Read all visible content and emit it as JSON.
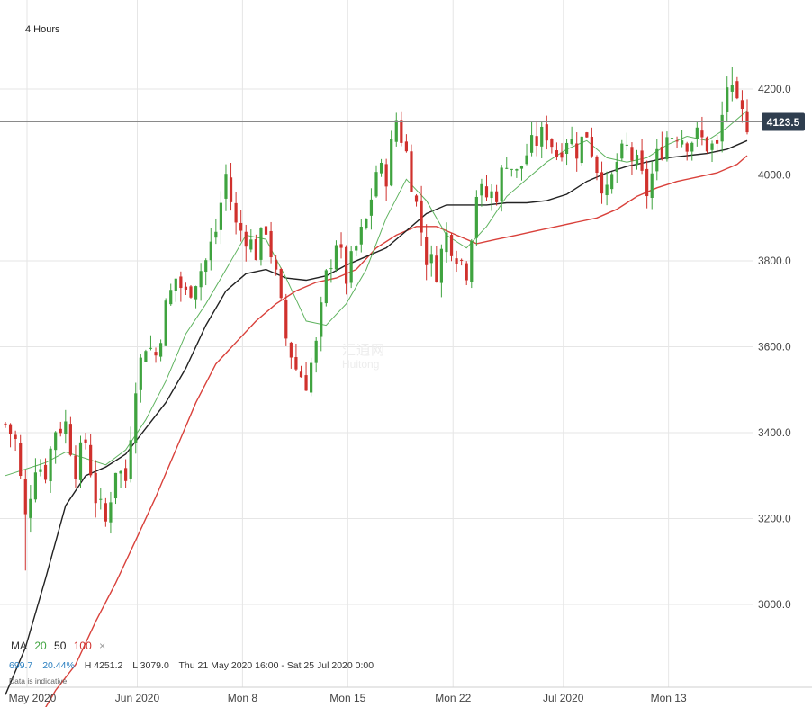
{
  "timeframe": "4 Hours",
  "last_price_label": "4123.5",
  "indicator": {
    "label": "MA",
    "periods": [
      "20",
      "50",
      "100"
    ],
    "remove": "×",
    "colors": {
      "ma20": "#5fb35f",
      "ma50": "#222222",
      "ma100": "#d9413b"
    }
  },
  "stats": {
    "change": "699.7",
    "change_pct": "20.44%",
    "high": "H 4251.2",
    "low": "L 3079.0",
    "range": "Thu 21 May 2020 16:00 - Sat 25 Jul 2020 0:00"
  },
  "note": "Data is indicative",
  "watermark": {
    "line1": "汇通网",
    "line2": "Huitong"
  },
  "colors": {
    "up": "#3fa33f",
    "down": "#d0312d",
    "price_tag": "#2f3e4f"
  },
  "chart_data": {
    "type": "candlestick",
    "title": "",
    "y_ticks": [
      "4200.0",
      "4000.0",
      "3800.0",
      "3600.0",
      "3400.0",
      "3200.0",
      "3000.0"
    ],
    "x_ticks": [
      "May 2020",
      "Jun 2020",
      "Mon 8",
      "Mon 15",
      "Mon 22",
      "Jul 2020",
      "Mon 13"
    ],
    "ylim": [
      2800,
      4290
    ],
    "last_price": 4123.5,
    "high": 4251.2,
    "low": 3079.0,
    "close_path": [
      [
        0,
        3420
      ],
      [
        2,
        3380
      ],
      [
        4,
        3200
      ],
      [
        6,
        3330
      ],
      [
        8,
        3310
      ],
      [
        10,
        3410
      ],
      [
        12,
        3420
      ],
      [
        14,
        3320
      ],
      [
        16,
        3380
      ],
      [
        18,
        3250
      ],
      [
        20,
        3190
      ],
      [
        22,
        3320
      ],
      [
        24,
        3290
      ],
      [
        26,
        3520
      ],
      [
        28,
        3610
      ],
      [
        30,
        3580
      ],
      [
        32,
        3690
      ],
      [
        34,
        3760
      ],
      [
        36,
        3720
      ],
      [
        38,
        3760
      ],
      [
        40,
        3800
      ],
      [
        42,
        3870
      ],
      [
        44,
        4000
      ],
      [
        46,
        3880
      ],
      [
        48,
        3860
      ],
      [
        50,
        3820
      ],
      [
        52,
        3880
      ],
      [
        54,
        3760
      ],
      [
        56,
        3620
      ],
      [
        58,
        3550
      ],
      [
        60,
        3520
      ],
      [
        62,
        3600
      ],
      [
        64,
        3760
      ],
      [
        66,
        3850
      ],
      [
        68,
        3760
      ],
      [
        70,
        3830
      ],
      [
        72,
        3890
      ],
      [
        74,
        4010
      ],
      [
        76,
        4000
      ],
      [
        78,
        4130
      ],
      [
        80,
        4050
      ],
      [
        82,
        3930
      ],
      [
        84,
        3810
      ],
      [
        86,
        3780
      ],
      [
        88,
        3860
      ],
      [
        90,
        3820
      ],
      [
        92,
        3780
      ],
      [
        94,
        3960
      ],
      [
        96,
        3950
      ],
      [
        98,
        3960
      ],
      [
        100,
        4040
      ],
      [
        102,
        4000
      ],
      [
        104,
        4050
      ],
      [
        106,
        4080
      ],
      [
        108,
        4100
      ],
      [
        110,
        4050
      ],
      [
        112,
        4090
      ],
      [
        114,
        4060
      ],
      [
        116,
        4100
      ],
      [
        118,
        4020
      ],
      [
        120,
        3950
      ],
      [
        122,
        4030
      ],
      [
        124,
        4060
      ],
      [
        126,
        4020
      ],
      [
        128,
        3960
      ],
      [
        130,
        4040
      ],
      [
        132,
        4090
      ],
      [
        134,
        4100
      ],
      [
        136,
        4080
      ],
      [
        138,
        4090
      ],
      [
        140,
        4070
      ],
      [
        142,
        4060
      ],
      [
        144,
        4210
      ],
      [
        146,
        4150
      ],
      [
        148,
        4123.5
      ]
    ],
    "ma20": [
      [
        0,
        3300
      ],
      [
        8,
        3330
      ],
      [
        12,
        3355
      ],
      [
        16,
        3340
      ],
      [
        20,
        3325
      ],
      [
        24,
        3360
      ],
      [
        28,
        3430
      ],
      [
        32,
        3520
      ],
      [
        36,
        3630
      ],
      [
        40,
        3700
      ],
      [
        44,
        3780
      ],
      [
        48,
        3860
      ],
      [
        52,
        3850
      ],
      [
        56,
        3760
      ],
      [
        60,
        3660
      ],
      [
        64,
        3650
      ],
      [
        68,
        3700
      ],
      [
        72,
        3780
      ],
      [
        76,
        3900
      ],
      [
        80,
        3990
      ],
      [
        84,
        3940
      ],
      [
        88,
        3860
      ],
      [
        92,
        3830
      ],
      [
        96,
        3880
      ],
      [
        100,
        3950
      ],
      [
        104,
        3990
      ],
      [
        108,
        4030
      ],
      [
        112,
        4060
      ],
      [
        116,
        4080
      ],
      [
        120,
        4040
      ],
      [
        124,
        4030
      ],
      [
        128,
        4040
      ],
      [
        132,
        4070
      ],
      [
        136,
        4090
      ],
      [
        140,
        4080
      ],
      [
        144,
        4110
      ],
      [
        148,
        4150
      ]
    ],
    "ma50": [
      [
        0,
        2790
      ],
      [
        4,
        2900
      ],
      [
        8,
        3060
      ],
      [
        12,
        3230
      ],
      [
        16,
        3300
      ],
      [
        20,
        3320
      ],
      [
        24,
        3350
      ],
      [
        28,
        3410
      ],
      [
        32,
        3470
      ],
      [
        36,
        3550
      ],
      [
        40,
        3650
      ],
      [
        44,
        3730
      ],
      [
        48,
        3770
      ],
      [
        52,
        3780
      ],
      [
        56,
        3760
      ],
      [
        60,
        3755
      ],
      [
        64,
        3765
      ],
      [
        68,
        3790
      ],
      [
        72,
        3810
      ],
      [
        76,
        3830
      ],
      [
        80,
        3870
      ],
      [
        84,
        3910
      ],
      [
        88,
        3930
      ],
      [
        92,
        3930
      ],
      [
        96,
        3930
      ],
      [
        100,
        3935
      ],
      [
        104,
        3935
      ],
      [
        108,
        3940
      ],
      [
        112,
        3955
      ],
      [
        116,
        3985
      ],
      [
        120,
        4005
      ],
      [
        124,
        4020
      ],
      [
        128,
        4030
      ],
      [
        132,
        4040
      ],
      [
        136,
        4045
      ],
      [
        140,
        4050
      ],
      [
        144,
        4060
      ],
      [
        148,
        4080
      ]
    ],
    "ma100": [
      [
        0,
        2680
      ],
      [
        6,
        2720
      ],
      [
        10,
        2800
      ],
      [
        14,
        2860
      ],
      [
        18,
        2960
      ],
      [
        22,
        3050
      ],
      [
        26,
        3150
      ],
      [
        30,
        3250
      ],
      [
        34,
        3360
      ],
      [
        38,
        3470
      ],
      [
        42,
        3560
      ],
      [
        46,
        3610
      ],
      [
        50,
        3660
      ],
      [
        54,
        3700
      ],
      [
        58,
        3730
      ],
      [
        62,
        3750
      ],
      [
        66,
        3760
      ],
      [
        70,
        3780
      ],
      [
        74,
        3830
      ],
      [
        78,
        3860
      ],
      [
        82,
        3880
      ],
      [
        86,
        3880
      ],
      [
        90,
        3860
      ],
      [
        94,
        3840
      ],
      [
        98,
        3850
      ],
      [
        102,
        3860
      ],
      [
        106,
        3870
      ],
      [
        110,
        3880
      ],
      [
        114,
        3890
      ],
      [
        118,
        3900
      ],
      [
        122,
        3920
      ],
      [
        126,
        3950
      ],
      [
        130,
        3970
      ],
      [
        134,
        3985
      ],
      [
        138,
        3995
      ],
      [
        142,
        4005
      ],
      [
        146,
        4025
      ],
      [
        148,
        4045
      ]
    ]
  }
}
